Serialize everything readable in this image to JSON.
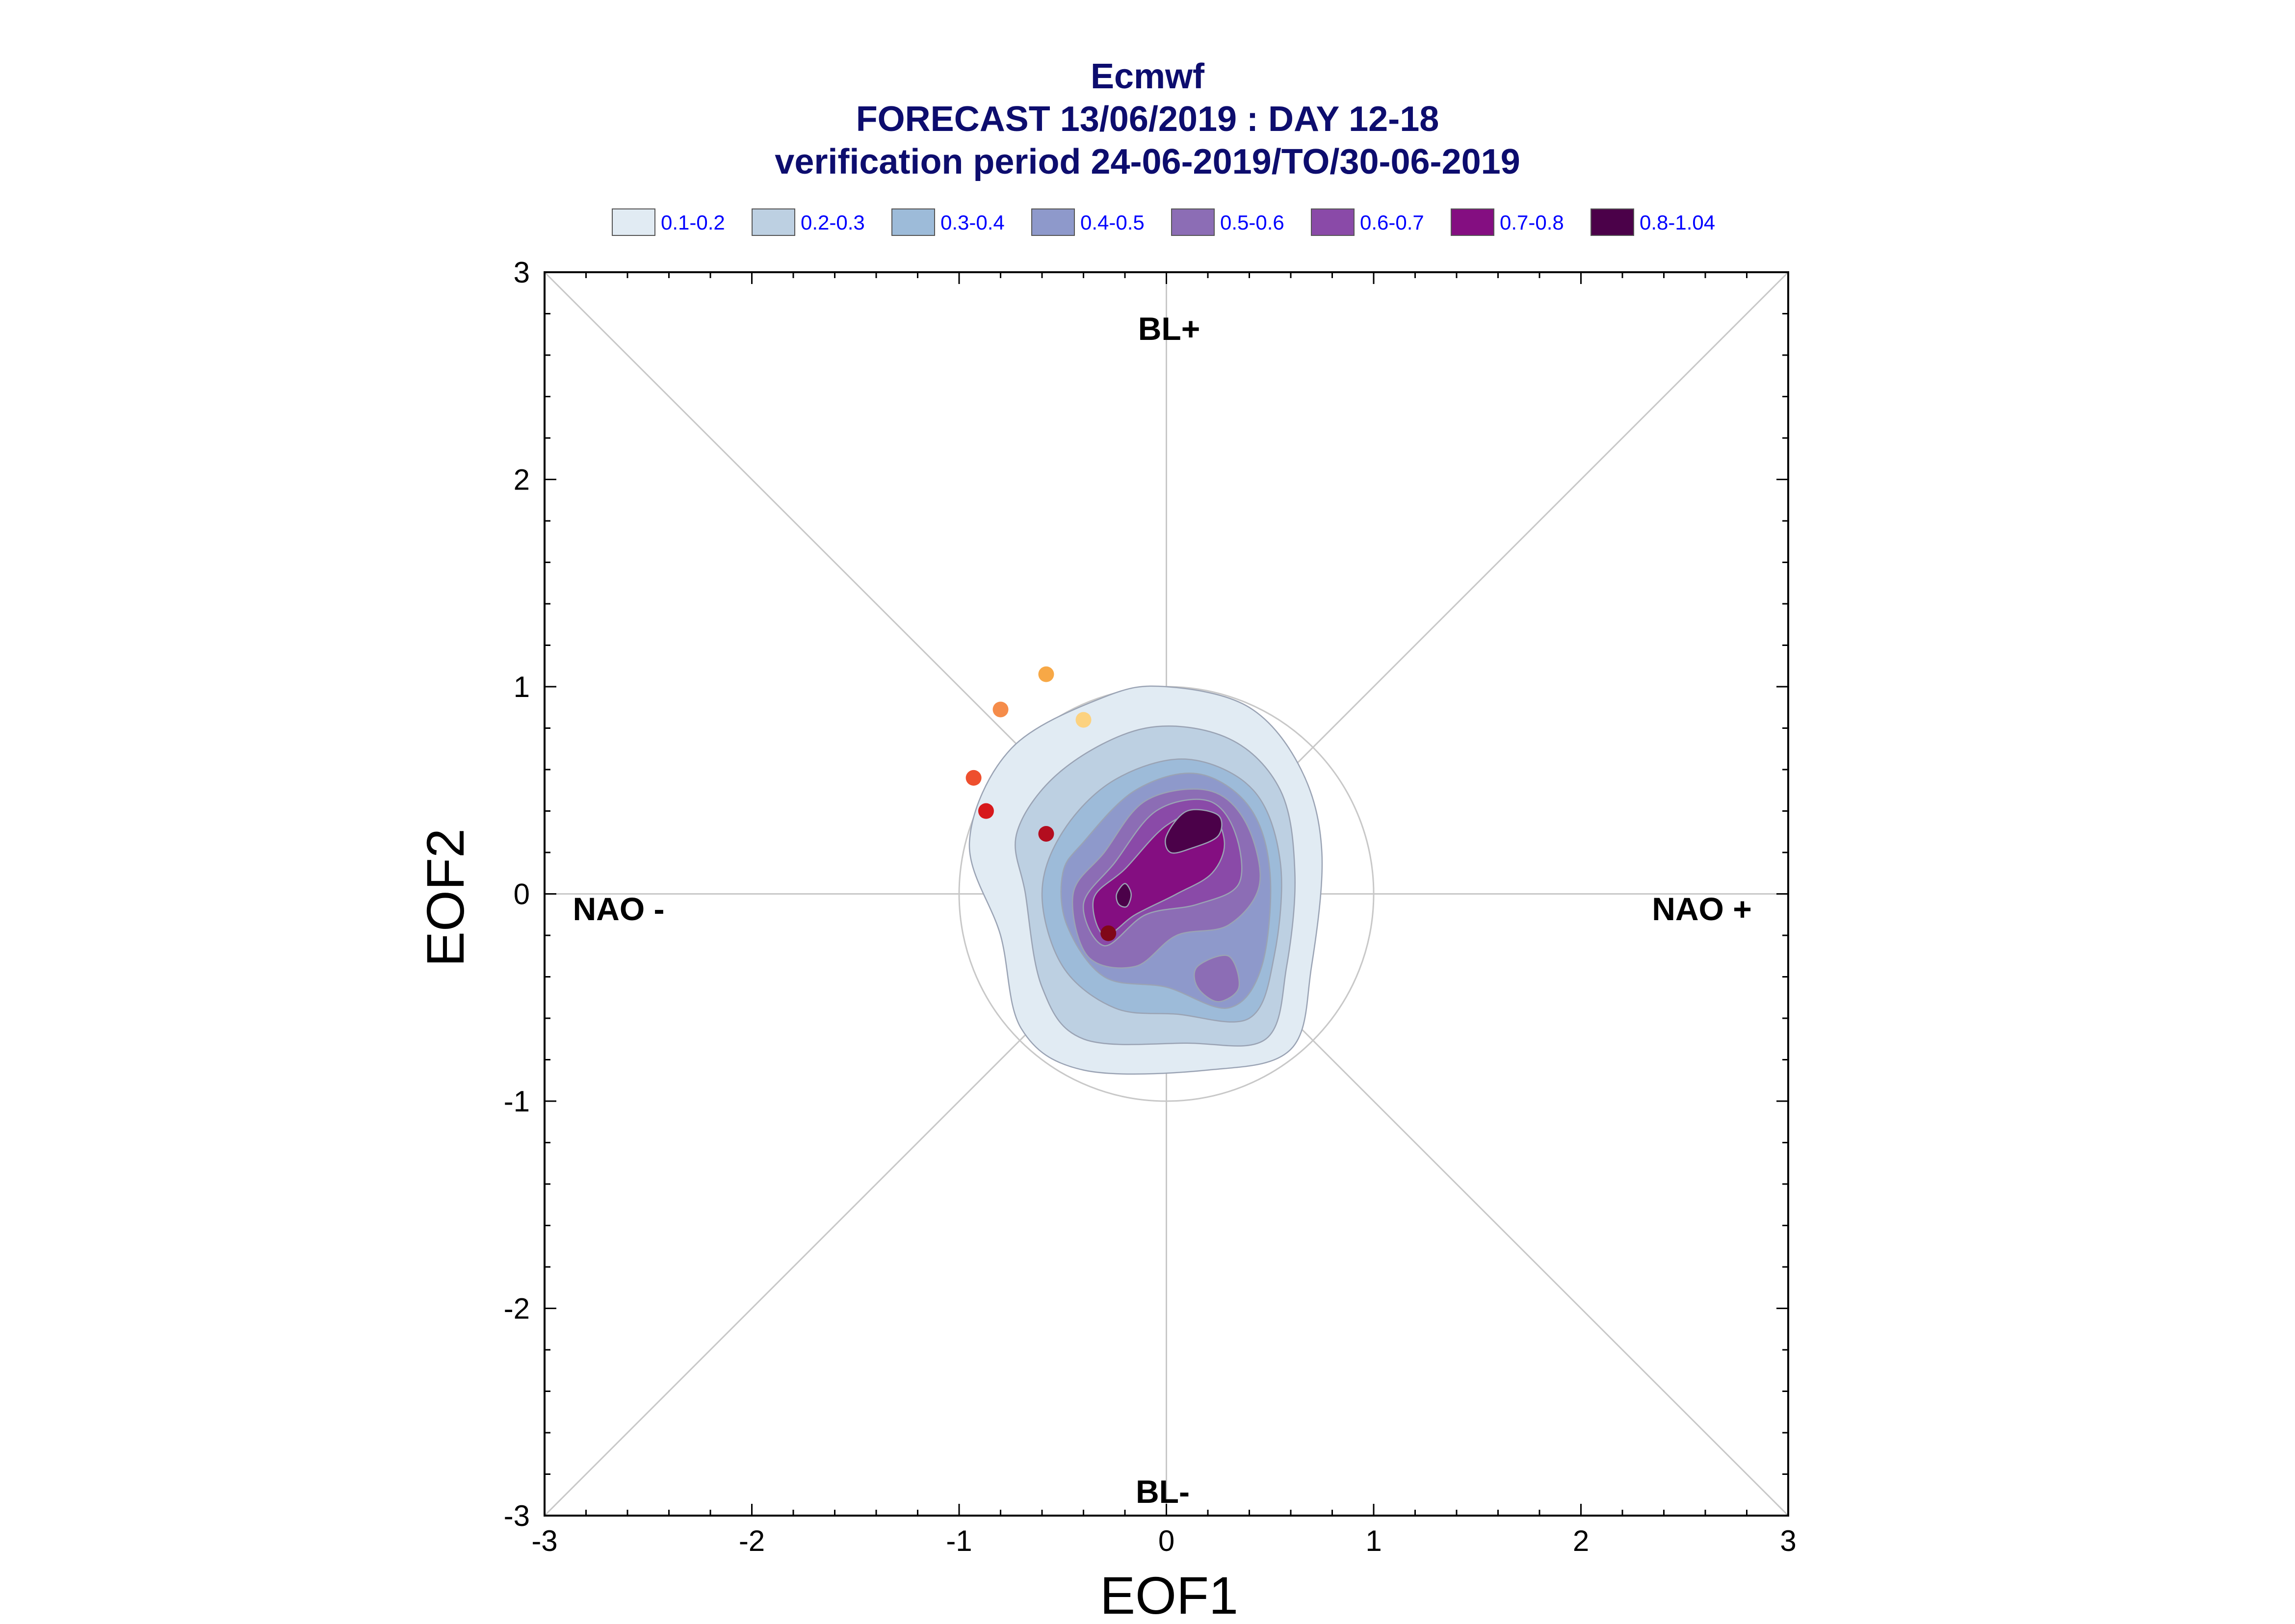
{
  "chart_data": {
    "type": "contour",
    "title_lines": [
      "Ecmwf",
      "FORECAST 13/06/2019 : DAY 12-18",
      "verification period 24-06-2019/TO/30-06-2019"
    ],
    "xlabel": "EOF1",
    "ylabel": "EOF2",
    "xlim": [
      -3,
      3
    ],
    "ylim": [
      -3,
      3
    ],
    "x_ticks": [
      "-3",
      "-2",
      "-1",
      "0",
      "1",
      "2",
      "3"
    ],
    "y_ticks": [
      "-3",
      "-2",
      "-1",
      "0",
      "1",
      "2",
      "3"
    ],
    "regime_labels": {
      "top": "BL+",
      "bottom": "BL-",
      "left": "NAO -",
      "right": "NAO +"
    },
    "unit_circle_radius": 1,
    "legend": [
      {
        "label": "0.1-0.2",
        "color": "#e1ebf3"
      },
      {
        "label": "0.2-0.3",
        "color": "#bdd0e2"
      },
      {
        "label": "0.3-0.4",
        "color": "#9dbbd9"
      },
      {
        "label": "0.4-0.5",
        "color": "#8e99cb"
      },
      {
        "label": "0.5-0.6",
        "color": "#8c6db5"
      },
      {
        "label": "0.6-0.7",
        "color": "#8a4aa8"
      },
      {
        "label": "0.7-0.8",
        "color": "#840e81"
      },
      {
        "label": "0.8-1.04",
        "color": "#4b0149"
      }
    ],
    "density_regions": [
      {
        "level": "0.1-0.2",
        "points": [
          [
            -0.75,
            0.7
          ],
          [
            -0.3,
            0.95
          ],
          [
            0.0,
            1.0
          ],
          [
            0.4,
            0.9
          ],
          [
            0.65,
            0.6
          ],
          [
            0.75,
            0.2
          ],
          [
            0.7,
            -0.35
          ],
          [
            0.6,
            -0.75
          ],
          [
            0.2,
            -0.85
          ],
          [
            -0.4,
            -0.85
          ],
          [
            -0.7,
            -0.65
          ],
          [
            -0.8,
            -0.2
          ],
          [
            -0.95,
            0.25
          ]
        ]
      },
      {
        "level": "0.2-0.3",
        "points": [
          [
            -0.5,
            0.6
          ],
          [
            -0.1,
            0.8
          ],
          [
            0.3,
            0.75
          ],
          [
            0.55,
            0.5
          ],
          [
            0.62,
            0.1
          ],
          [
            0.58,
            -0.35
          ],
          [
            0.48,
            -0.7
          ],
          [
            0.1,
            -0.72
          ],
          [
            -0.4,
            -0.7
          ],
          [
            -0.6,
            -0.45
          ],
          [
            -0.68,
            0.0
          ],
          [
            -0.72,
            0.3
          ]
        ]
      },
      {
        "level": "0.3-0.4",
        "points": [
          [
            -0.5,
            0.3
          ],
          [
            -0.25,
            0.55
          ],
          [
            0.1,
            0.65
          ],
          [
            0.42,
            0.5
          ],
          [
            0.55,
            0.15
          ],
          [
            0.52,
            -0.3
          ],
          [
            0.4,
            -0.6
          ],
          [
            0.05,
            -0.58
          ],
          [
            -0.25,
            -0.55
          ],
          [
            -0.5,
            -0.35
          ],
          [
            -0.6,
            0.0
          ]
        ]
      },
      {
        "level": "0.4-0.5",
        "points": [
          [
            -0.4,
            0.25
          ],
          [
            -0.15,
            0.5
          ],
          [
            0.15,
            0.58
          ],
          [
            0.4,
            0.42
          ],
          [
            0.5,
            0.1
          ],
          [
            0.46,
            -0.35
          ],
          [
            0.3,
            -0.55
          ],
          [
            0.0,
            -0.45
          ],
          [
            -0.3,
            -0.4
          ],
          [
            -0.48,
            -0.15
          ],
          [
            -0.5,
            0.1
          ]
        ]
      },
      {
        "level": "0.5-0.6",
        "points": [
          [
            -0.3,
            0.2
          ],
          [
            -0.1,
            0.45
          ],
          [
            0.2,
            0.5
          ],
          [
            0.38,
            0.35
          ],
          [
            0.45,
            0.05
          ],
          [
            0.3,
            -0.15
          ],
          [
            0.05,
            -0.2
          ],
          [
            -0.15,
            -0.35
          ],
          [
            -0.38,
            -0.3
          ],
          [
            -0.45,
            0.0
          ]
        ]
      },
      {
        "level": "0.5-0.6",
        "points": [
          [
            0.15,
            -0.35
          ],
          [
            0.3,
            -0.3
          ],
          [
            0.35,
            -0.45
          ],
          [
            0.25,
            -0.52
          ],
          [
            0.15,
            -0.45
          ]
        ]
      },
      {
        "level": "0.6-0.7",
        "points": [
          [
            -0.25,
            0.15
          ],
          [
            -0.05,
            0.4
          ],
          [
            0.2,
            0.45
          ],
          [
            0.33,
            0.3
          ],
          [
            0.35,
            0.05
          ],
          [
            0.15,
            -0.05
          ],
          [
            -0.1,
            -0.1
          ],
          [
            -0.3,
            -0.25
          ],
          [
            -0.4,
            -0.05
          ]
        ]
      },
      {
        "level": "0.7-0.8",
        "points": [
          [
            -0.2,
            0.12
          ],
          [
            0.0,
            0.33
          ],
          [
            0.2,
            0.4
          ],
          [
            0.28,
            0.25
          ],
          [
            0.22,
            0.1
          ],
          [
            0.05,
            0.0
          ],
          [
            -0.15,
            -0.1
          ],
          [
            -0.3,
            -0.2
          ],
          [
            -0.35,
            -0.02
          ]
        ]
      },
      {
        "level": "0.8-1.04",
        "points": [
          [
            0.0,
            0.28
          ],
          [
            0.1,
            0.4
          ],
          [
            0.25,
            0.38
          ],
          [
            0.25,
            0.28
          ],
          [
            0.12,
            0.22
          ],
          [
            0.02,
            0.2
          ]
        ]
      },
      {
        "level": "0.8-1.04",
        "points": [
          [
            -0.24,
            0.0
          ],
          [
            -0.2,
            0.05
          ],
          [
            -0.17,
            0.0
          ],
          [
            -0.19,
            -0.06
          ],
          [
            -0.23,
            -0.05
          ]
        ]
      }
    ],
    "observed_points": [
      {
        "x": -0.58,
        "y": 1.06,
        "color": "#f7a846"
      },
      {
        "x": -0.4,
        "y": 0.84,
        "color": "#fcd280"
      },
      {
        "x": -0.8,
        "y": 0.89,
        "color": "#f58c4a"
      },
      {
        "x": -0.93,
        "y": 0.56,
        "color": "#ee4f2e"
      },
      {
        "x": -0.87,
        "y": 0.4,
        "color": "#d7191c"
      },
      {
        "x": -0.58,
        "y": 0.29,
        "color": "#b30d1f"
      },
      {
        "x": -0.28,
        "y": -0.19,
        "color": "#800818"
      }
    ]
  }
}
